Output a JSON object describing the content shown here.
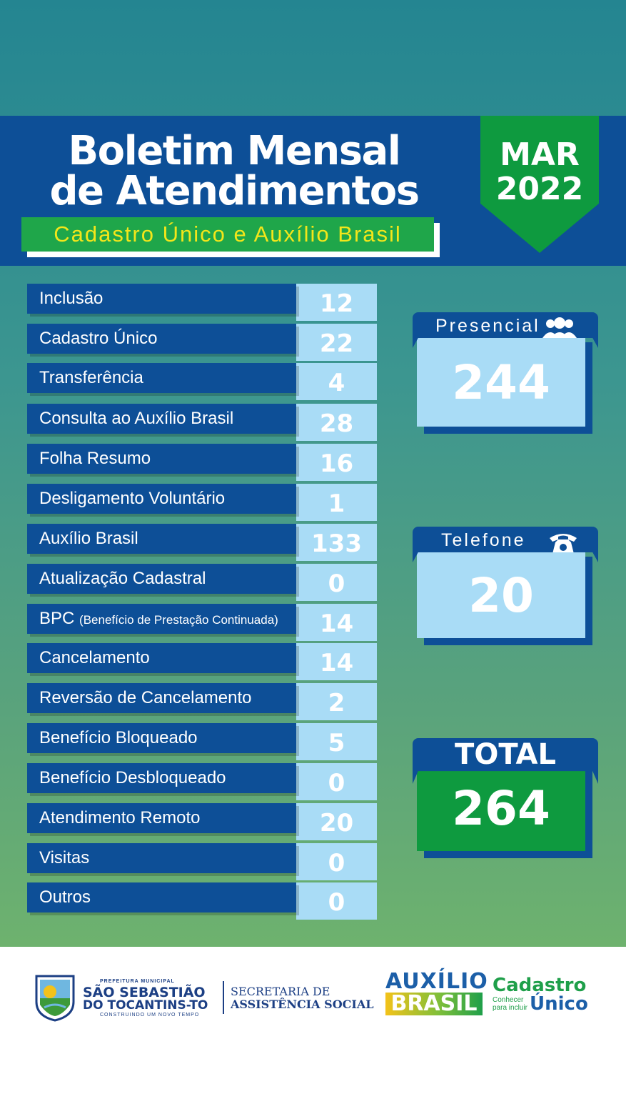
{
  "header": {
    "title_line1": "Boletim Mensal",
    "title_line2": "de Atendimentos",
    "subtitle": "Cadastro Único e Auxílio Brasil",
    "month": "MAR",
    "year": "2022"
  },
  "rows": [
    {
      "label": "Inclusão",
      "value": "12"
    },
    {
      "label": "Cadastro Único",
      "value": "22"
    },
    {
      "label": "Transferência",
      "value": "4"
    },
    {
      "label": "Consulta ao Auxílio Brasil",
      "value": "28"
    },
    {
      "label": "Folha Resumo",
      "value": "16"
    },
    {
      "label": "Desligamento Voluntário",
      "value": "1"
    },
    {
      "label": "Auxílio Brasil",
      "value": "133"
    },
    {
      "label": "Atualização Cadastral",
      "value": "0"
    },
    {
      "label": "BPC",
      "label_note": "(Benefício de Prestação Continuada)",
      "value": "14"
    },
    {
      "label": "Cancelamento",
      "value": "14"
    },
    {
      "label": "Reversão de Cancelamento",
      "value": "2"
    },
    {
      "label": "Benefício Bloqueado",
      "value": "5"
    },
    {
      "label": "Benefício Desbloqueado",
      "value": "0"
    },
    {
      "label": "Atendimento Remoto",
      "value": "20"
    },
    {
      "label": "Visitas",
      "value": "0"
    },
    {
      "label": "Outros",
      "value": "0"
    }
  ],
  "cards": {
    "presencial": {
      "label": "Presencial",
      "value": "244",
      "icon": "people-icon"
    },
    "telefone": {
      "label": "Telefone",
      "value": "20",
      "icon": "phone-icon"
    },
    "total": {
      "label": "TOTAL",
      "value": "264"
    }
  },
  "footer": {
    "pref_small": "PREFEITURA MUNICIPAL",
    "pref_line1": "SÃO SEBASTIÃO",
    "pref_line2": "DO TOCANTINS-TO",
    "pref_slogan": "CONSTRUINDO UM NOVO TEMPO",
    "sec_line1": "SECRETARIA DE",
    "sec_line2": "ASSISTÊNCIA SOCIAL",
    "aux_line1": "AUXÍLIO",
    "aux_line2": "BRASIL",
    "cad_line1": "Cadastro",
    "cad_tagline": "Conhecer para incluir",
    "cad_line2": "Único"
  },
  "colors": {
    "navy": "#0d4f97",
    "green": "#0e9a3f",
    "light_blue": "#a9dcf6",
    "yellow": "#f3e61a"
  }
}
